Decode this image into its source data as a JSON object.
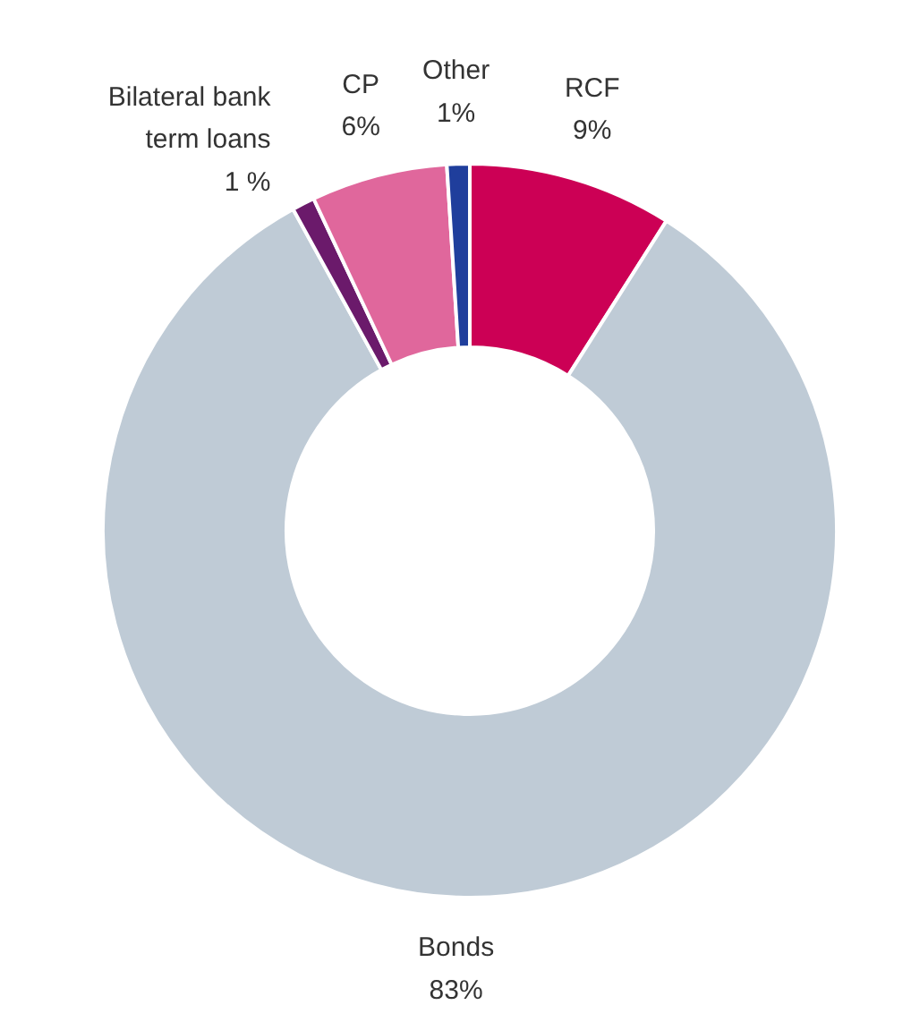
{
  "chart_data": {
    "type": "donut",
    "categories": [
      "RCF",
      "Bonds",
      "Bilateral bank\nterm loans",
      "CP",
      "Other"
    ],
    "values": [
      9,
      83,
      1,
      6,
      1
    ],
    "value_labels": [
      "9%",
      "83%",
      "1 %",
      "6%",
      "1%"
    ],
    "colors": [
      "#cc0055",
      "#bfcbd6",
      "#6b1a6b",
      "#e0679c",
      "#1f3e9c"
    ]
  }
}
